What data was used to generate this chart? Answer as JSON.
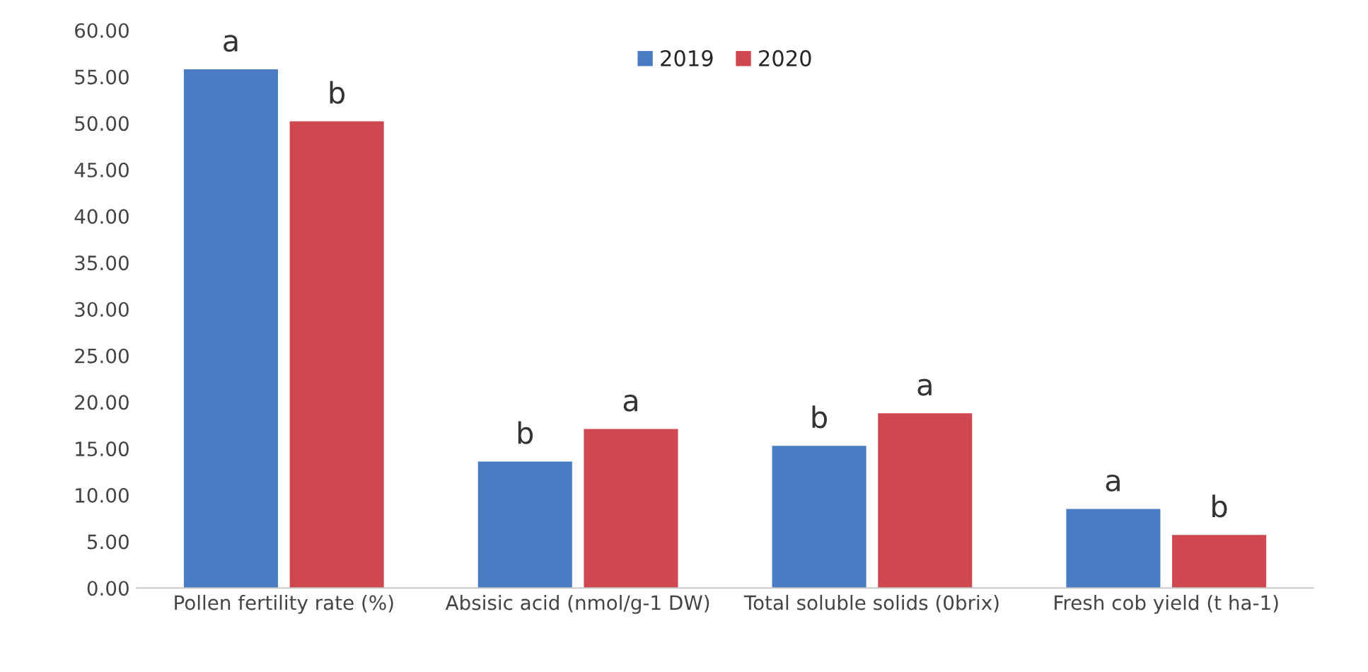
{
  "chart_data": {
    "type": "bar",
    "categories": [
      "Pollen fertility rate (%)",
      "Absisic acid (nmol/g-1 DW)",
      "Total soluble solids (0brix)",
      "Fresh cob yield (t ha-1)"
    ],
    "series": [
      {
        "name": "2019",
        "color": "#4a7cc4",
        "values": [
          55.8,
          13.6,
          15.3,
          8.5
        ]
      },
      {
        "name": "2020",
        "color": "#d0484f",
        "values": [
          50.2,
          17.1,
          18.8,
          5.7
        ]
      }
    ],
    "ylim": [
      0,
      60
    ],
    "yticks": [
      {
        "value": 0,
        "label": "0.00"
      },
      {
        "value": 5,
        "label": "5.00"
      },
      {
        "value": 10,
        "label": "10.00"
      },
      {
        "value": 15,
        "label": "15.00"
      },
      {
        "value": 20,
        "label": "20.00"
      },
      {
        "value": 25,
        "label": "25.00"
      },
      {
        "value": 30,
        "label": "30.00"
      },
      {
        "value": 35,
        "label": "35.00"
      },
      {
        "value": 40,
        "label": "40.00"
      },
      {
        "value": 45,
        "label": "45.00"
      },
      {
        "value": 50,
        "label": "50.00"
      },
      {
        "value": 55,
        "label": "55.00"
      },
      {
        "value": 60,
        "label": "60.00"
      }
    ],
    "annotations": [
      {
        "text": "a",
        "x": "Pollen fertility rate (%)",
        "y": 55.8
      },
      {
        "text": "b",
        "x": "Pollen fertility rate (%)",
        "y": 50.2
      },
      {
        "text": "b",
        "x": "Absisic acid (nmol/g-1 DW)",
        "y": 13.6
      },
      {
        "text": "a",
        "x": "Absisic acid (nmol/g-1 DW)",
        "y": 17.1
      },
      {
        "text": "b",
        "x": "Total soluble solids (0brix)",
        "y": 15.3
      },
      {
        "text": "a",
        "x": "Total soluble solids (0brix)",
        "y": 18.8
      },
      {
        "text": "a",
        "x": "Fresh cob yield (t ha-1)",
        "y": 8.5
      },
      {
        "text": "b",
        "x": "Fresh cob yield (t ha-1)",
        "y": 5.7
      }
    ],
    "legend": "top",
    "grid": false
  }
}
